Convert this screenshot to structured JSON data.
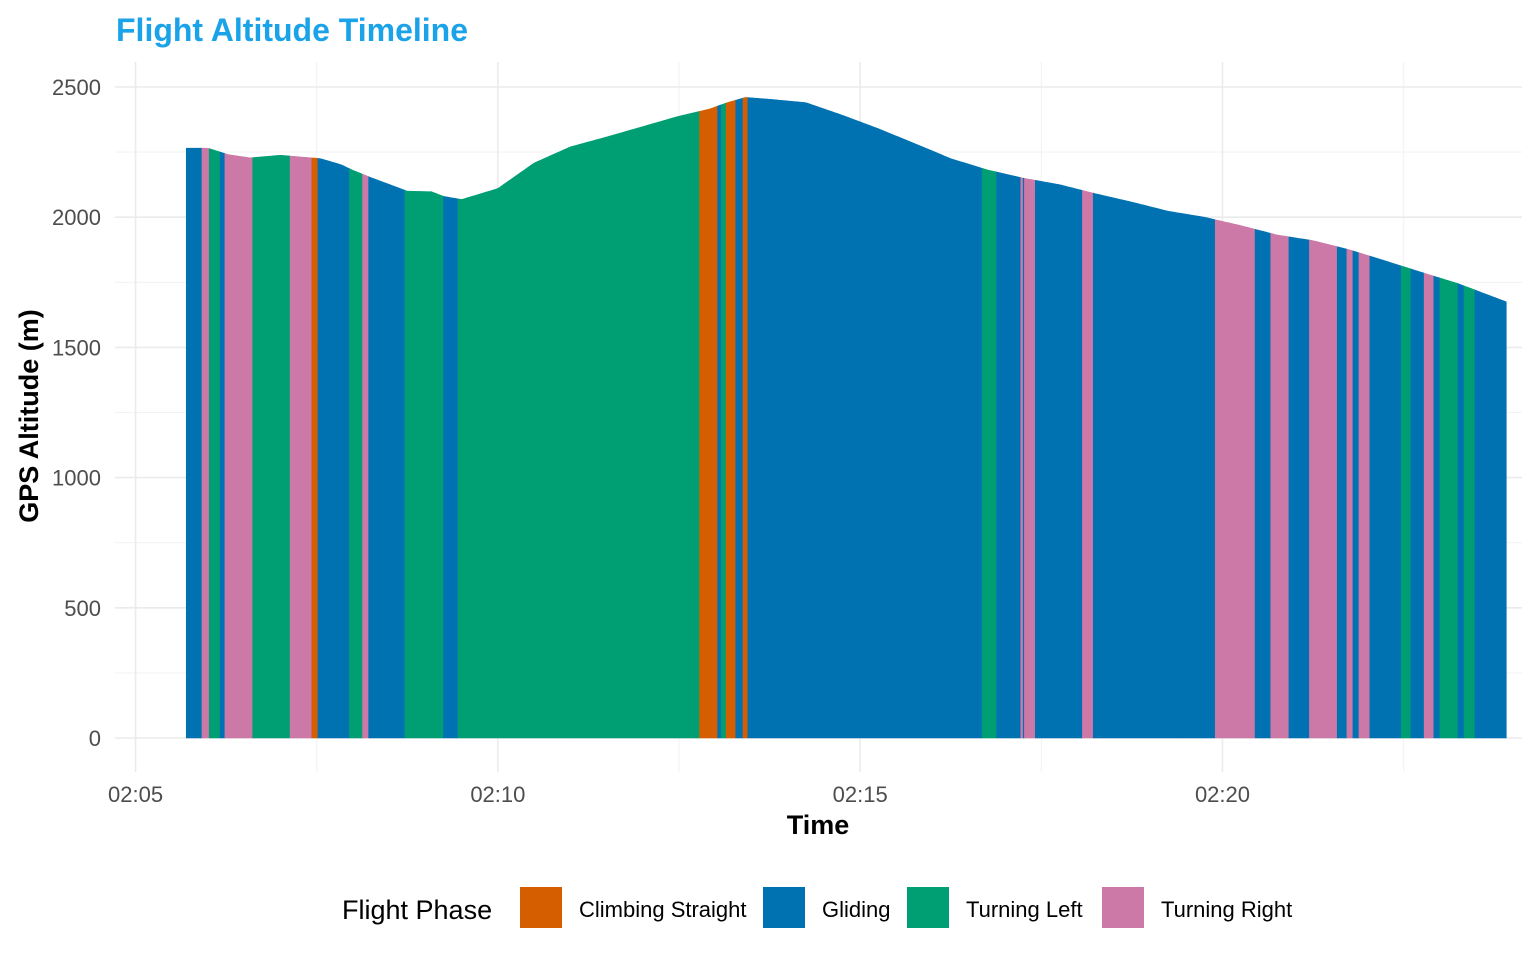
{
  "chart_data": {
    "type": "area",
    "title": "Flight Altitude Timeline",
    "title_color": "#1aa3e8",
    "xlabel": "Time",
    "ylabel": "GPS Altitude (m)",
    "ylim": [
      0,
      2550
    ],
    "y_ticks": [
      0,
      500,
      1000,
      1500,
      2000,
      2500
    ],
    "x_range": [
      "02:04:43",
      "02:24:08"
    ],
    "x_ticks": [
      "02:05",
      "02:10",
      "02:15",
      "02:20"
    ],
    "grid": true,
    "legend": {
      "title": "Flight Phase",
      "position": "bottom",
      "entries": [
        "Climbing Straight",
        "Gliding",
        "Turning Left",
        "Turning Right"
      ]
    },
    "colors": {
      "Climbing Straight": "#d55e00",
      "Gliding": "#0072b2",
      "Turning Left": "#009e73",
      "Turning Right": "#cc79a7"
    },
    "altitude_profile": {
      "time": [
        "02:05:42",
        "02:06:00",
        "02:06:17",
        "02:06:35",
        "02:07:00",
        "02:07:33",
        "02:07:50",
        "02:08:00",
        "02:08:15",
        "02:08:45",
        "02:09:05",
        "02:09:15",
        "02:09:30",
        "02:10:00",
        "02:10:30",
        "02:11:00",
        "02:11:30",
        "02:12:00",
        "02:12:30",
        "02:12:55",
        "02:13:10",
        "02:13:25",
        "02:13:45",
        "02:14:15",
        "02:14:45",
        "02:15:15",
        "02:15:45",
        "02:16:15",
        "02:16:45",
        "02:17:15",
        "02:17:45",
        "02:18:15",
        "02:18:45",
        "02:19:15",
        "02:19:45",
        "02:20:15",
        "02:20:45",
        "02:21:15",
        "02:21:45",
        "02:22:15",
        "02:22:45",
        "02:23:15",
        "02:23:55"
      ],
      "altitude": [
        2265,
        2265,
        2240,
        2228,
        2238,
        2225,
        2202,
        2180,
        2152,
        2100,
        2098,
        2080,
        2068,
        2110,
        2208,
        2270,
        2308,
        2348,
        2388,
        2415,
        2440,
        2460,
        2453,
        2440,
        2392,
        2340,
        2283,
        2225,
        2182,
        2150,
        2125,
        2090,
        2058,
        2023,
        2000,
        1968,
        1932,
        1910,
        1875,
        1832,
        1788,
        1745,
        1675
      ]
    },
    "phases": [
      {
        "phase": "Gliding",
        "start": "02:05:42",
        "end": "02:05:55"
      },
      {
        "phase": "Turning Right",
        "start": "02:05:55",
        "end": "02:06:01"
      },
      {
        "phase": "Turning Left",
        "start": "02:06:01",
        "end": "02:06:10"
      },
      {
        "phase": "Gliding",
        "start": "02:06:10",
        "end": "02:06:14"
      },
      {
        "phase": "Turning Right",
        "start": "02:06:14",
        "end": "02:06:37"
      },
      {
        "phase": "Turning Left",
        "start": "02:06:37",
        "end": "02:07:08"
      },
      {
        "phase": "Turning Right",
        "start": "02:07:08",
        "end": "02:07:26"
      },
      {
        "phase": "Climbing Straight",
        "start": "02:07:26",
        "end": "02:07:31"
      },
      {
        "phase": "Gliding",
        "start": "02:07:31",
        "end": "02:07:57"
      },
      {
        "phase": "Turning Left",
        "start": "02:07:57",
        "end": "02:08:08"
      },
      {
        "phase": "Turning Right",
        "start": "02:08:08",
        "end": "02:08:13"
      },
      {
        "phase": "Gliding",
        "start": "02:08:13",
        "end": "02:08:43"
      },
      {
        "phase": "Turning Left",
        "start": "02:08:43",
        "end": "02:09:05"
      },
      {
        "phase": "Turning Left",
        "start": "02:09:05",
        "end": "02:09:15"
      },
      {
        "phase": "Gliding",
        "start": "02:09:15",
        "end": "02:09:27"
      },
      {
        "phase": "Turning Left",
        "start": "02:09:27",
        "end": "02:11:01"
      },
      {
        "phase": "Turning Left",
        "start": "02:11:01",
        "end": "02:12:47"
      },
      {
        "phase": "Climbing Straight",
        "start": "02:12:47",
        "end": "02:13:02"
      },
      {
        "phase": "Gliding",
        "start": "02:13:02",
        "end": "02:13:05"
      },
      {
        "phase": "Turning Left",
        "start": "02:13:05",
        "end": "02:13:09"
      },
      {
        "phase": "Climbing Straight",
        "start": "02:13:09",
        "end": "02:13:17"
      },
      {
        "phase": "Gliding",
        "start": "02:13:17",
        "end": "02:13:23"
      },
      {
        "phase": "Climbing Straight",
        "start": "02:13:23",
        "end": "02:13:27"
      },
      {
        "phase": "Gliding",
        "start": "02:13:27",
        "end": "02:16:41"
      },
      {
        "phase": "Turning Left",
        "start": "02:16:41",
        "end": "02:16:53"
      },
      {
        "phase": "Gliding",
        "start": "02:16:53",
        "end": "02:17:13"
      },
      {
        "phase": "Turning Right",
        "start": "02:17:13",
        "end": "02:17:15"
      },
      {
        "phase": "Gliding",
        "start": "02:17:15",
        "end": "02:17:16"
      },
      {
        "phase": "Turning Right",
        "start": "02:17:16",
        "end": "02:17:25"
      },
      {
        "phase": "Gliding",
        "start": "02:17:25",
        "end": "02:18:04"
      },
      {
        "phase": "Turning Right",
        "start": "02:18:04",
        "end": "02:18:13"
      },
      {
        "phase": "Gliding",
        "start": "02:18:13",
        "end": "02:19:26"
      },
      {
        "phase": "Gliding",
        "start": "02:19:26",
        "end": "02:19:54"
      },
      {
        "phase": "Turning Right",
        "start": "02:19:54",
        "end": "02:20:27"
      },
      {
        "phase": "Gliding",
        "start": "02:20:27",
        "end": "02:20:40"
      },
      {
        "phase": "Turning Right",
        "start": "02:20:40",
        "end": "02:20:55"
      },
      {
        "phase": "Gliding",
        "start": "02:20:55",
        "end": "02:21:12"
      },
      {
        "phase": "Turning Right",
        "start": "02:21:12",
        "end": "02:21:31"
      },
      {
        "phase": "Turning Right",
        "start": "02:21:31",
        "end": "02:21:35"
      },
      {
        "phase": "Gliding",
        "start": "02:21:35",
        "end": "02:21:43"
      },
      {
        "phase": "Turning Right",
        "start": "02:21:43",
        "end": "02:21:48"
      },
      {
        "phase": "Gliding",
        "start": "02:21:48",
        "end": "02:21:53"
      },
      {
        "phase": "Turning Right",
        "start": "02:21:53",
        "end": "02:22:02"
      },
      {
        "phase": "Gliding",
        "start": "02:22:02",
        "end": "02:22:28"
      },
      {
        "phase": "Turning Left",
        "start": "02:22:28",
        "end": "02:22:36"
      },
      {
        "phase": "Gliding",
        "start": "02:22:36",
        "end": "02:22:47"
      },
      {
        "phase": "Turning Right",
        "start": "02:22:47",
        "end": "02:22:55"
      },
      {
        "phase": "Gliding",
        "start": "02:22:55",
        "end": "02:23:00"
      },
      {
        "phase": "Turning Left",
        "start": "02:23:00",
        "end": "02:23:15"
      },
      {
        "phase": "Gliding",
        "start": "02:23:15",
        "end": "02:23:20"
      },
      {
        "phase": "Turning Left",
        "start": "02:23:20",
        "end": "02:23:26"
      },
      {
        "phase": "Turning Left",
        "start": "02:23:26",
        "end": "02:23:29"
      },
      {
        "phase": "Gliding",
        "start": "02:23:29",
        "end": "02:23:55"
      }
    ]
  }
}
